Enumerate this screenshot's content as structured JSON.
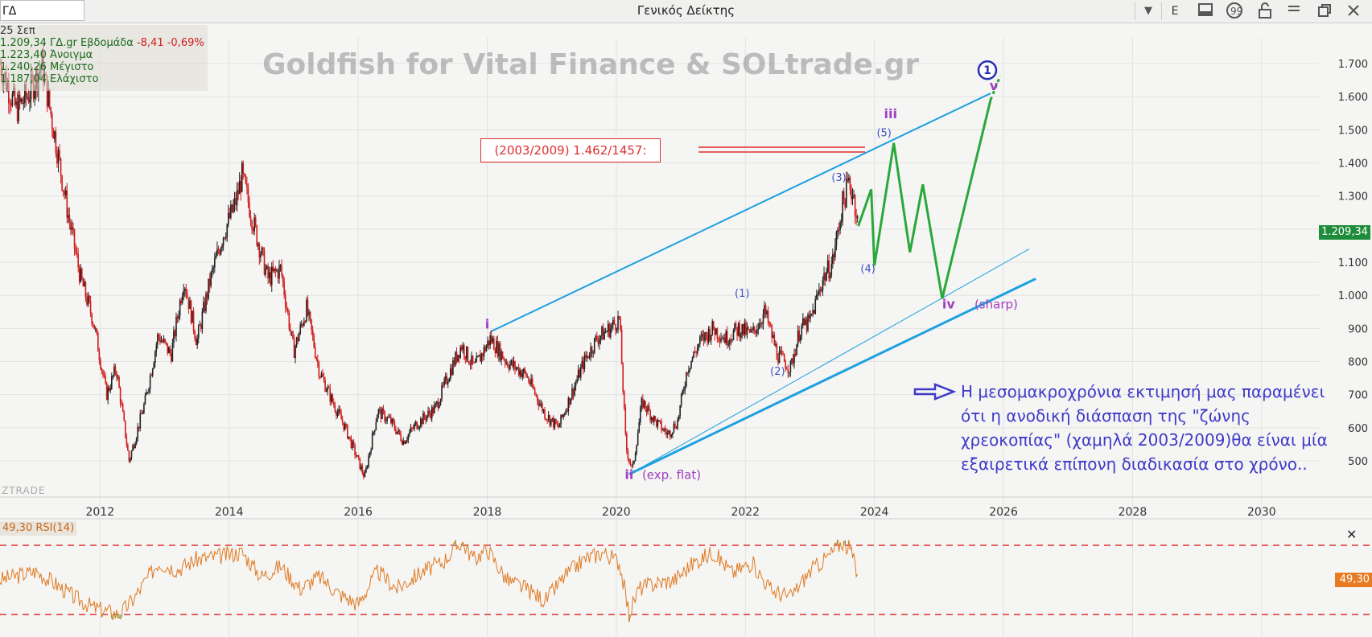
{
  "toolbar": {
    "symbol": "ΓΔ",
    "title": "Γενικός Δείκτης",
    "e_label": "E"
  },
  "info": {
    "date": "25 Σεπ",
    "close": "1.209,34 ΓΔ.gr Εβδομάδα",
    "change": "-8,41 -0,69%",
    "open": "1.223,40 Άνοιγμα",
    "high": "1.240,26 Μέγιστο",
    "low": "1.187,04 Ελάχιστο"
  },
  "watermark": "Goldfish for Vital Finance & SOLtrade.gr",
  "brand": "ZTRADE",
  "history_box": "(2003/2009) 1.462/1457:",
  "comment": "Η μεσομακροχρόνια εκτιμησή μας παραμένει ότι η ανοδική διάσπαση της \"ζώνης χρεοκοπίας\" (χαμηλά 2003/2009)θα είναι μία εξαιρετικά επίπονη διαδικασία στο χρόνο..",
  "last_price": "1.209,34",
  "rsi": {
    "label": "49,30 RSI(14)",
    "value_tag": "49,30",
    "mid_tick": "50",
    "overbought": 70,
    "oversold": 30
  },
  "colors": {
    "up": "#222222",
    "down": "#d01c1c",
    "channel": "#1ea0e0",
    "projection": "#2aa83a",
    "rsi_line": "#e07a22",
    "rsi_fill": "#8fce8f",
    "limit": "#e03030",
    "wave_label": "#a040c0",
    "sub_wave": "#4050c0"
  },
  "chart_data": {
    "type": "candlestick",
    "y_axis": {
      "ticks": [
        500,
        600,
        700,
        800,
        900,
        1000,
        1100,
        1200,
        1300,
        1400,
        1500,
        1600,
        1700
      ],
      "tick_labels": [
        "500",
        "600",
        "700",
        "800",
        "900",
        "1.000",
        "1.100",
        "1.200",
        "1.300",
        "1.400",
        "1.500",
        "1.600",
        "1.700"
      ],
      "range": [
        420,
        1750
      ]
    },
    "x_axis": {
      "ticks": [
        2012,
        2014,
        2016,
        2018,
        2020,
        2022,
        2024,
        2026,
        2028,
        2030
      ],
      "tick_labels": [
        "2012",
        "2014",
        "2016",
        "2018",
        "2020",
        "2022",
        "2024",
        "2026",
        "2028",
        "2030"
      ],
      "range": [
        2010.45,
        2030.9
      ]
    },
    "price_path": [
      [
        2010.45,
        1700
      ],
      [
        2010.7,
        1560
      ],
      [
        2010.9,
        1610
      ],
      [
        2011.1,
        1700
      ],
      [
        2011.3,
        1480
      ],
      [
        2011.5,
        1250
      ],
      [
        2011.7,
        1050
      ],
      [
        2011.9,
        920
      ],
      [
        2012.1,
        700
      ],
      [
        2012.25,
        780
      ],
      [
        2012.45,
        500
      ],
      [
        2012.7,
        680
      ],
      [
        2012.9,
        880
      ],
      [
        2013.1,
        820
      ],
      [
        2013.3,
        1050
      ],
      [
        2013.5,
        860
      ],
      [
        2013.7,
        1040
      ],
      [
        2013.9,
        1180
      ],
      [
        2014.1,
        1280
      ],
      [
        2014.2,
        1360
      ],
      [
        2014.4,
        1200
      ],
      [
        2014.6,
        1050
      ],
      [
        2014.8,
        1080
      ],
      [
        2015.0,
        830
      ],
      [
        2015.2,
        960
      ],
      [
        2015.4,
        770
      ],
      [
        2015.6,
        680
      ],
      [
        2015.8,
        600
      ],
      [
        2016.1,
        450
      ],
      [
        2016.3,
        650
      ],
      [
        2016.5,
        620
      ],
      [
        2016.7,
        560
      ],
      [
        2016.9,
        610
      ],
      [
        2017.2,
        660
      ],
      [
        2017.4,
        760
      ],
      [
        2017.6,
        850
      ],
      [
        2017.8,
        780
      ],
      [
        2018.05,
        870
      ],
      [
        2018.3,
        800
      ],
      [
        2018.6,
        760
      ],
      [
        2018.9,
        640
      ],
      [
        2019.1,
        600
      ],
      [
        2019.3,
        700
      ],
      [
        2019.5,
        800
      ],
      [
        2019.7,
        870
      ],
      [
        2019.9,
        900
      ],
      [
        2020.05,
        930
      ],
      [
        2020.15,
        540
      ],
      [
        2020.25,
        470
      ],
      [
        2020.4,
        680
      ],
      [
        2020.6,
        620
      ],
      [
        2020.8,
        580
      ],
      [
        2020.95,
        620
      ],
      [
        2021.1,
        780
      ],
      [
        2021.3,
        860
      ],
      [
        2021.5,
        900
      ],
      [
        2021.7,
        870
      ],
      [
        2021.9,
        900
      ],
      [
        2022.1,
        880
      ],
      [
        2022.3,
        950
      ],
      [
        2022.5,
        820
      ],
      [
        2022.7,
        780
      ],
      [
        2022.85,
        900
      ],
      [
        2023.0,
        920
      ],
      [
        2023.2,
        1050
      ],
      [
        2023.35,
        1100
      ],
      [
        2023.5,
        1270
      ],
      [
        2023.6,
        1340
      ],
      [
        2023.68,
        1300
      ],
      [
        2023.75,
        1209
      ]
    ],
    "rsi_path": [
      [
        2010.45,
        50
      ],
      [
        2011.0,
        55
      ],
      [
        2011.3,
        48
      ],
      [
        2011.6,
        40
      ],
      [
        2011.9,
        34
      ],
      [
        2012.3,
        30
      ],
      [
        2012.5,
        38
      ],
      [
        2012.9,
        60
      ],
      [
        2013.2,
        56
      ],
      [
        2013.5,
        62
      ],
      [
        2013.9,
        64
      ],
      [
        2014.2,
        66
      ],
      [
        2014.5,
        52
      ],
      [
        2014.8,
        58
      ],
      [
        2015.1,
        45
      ],
      [
        2015.4,
        52
      ],
      [
        2015.7,
        42
      ],
      [
        2016.0,
        36
      ],
      [
        2016.3,
        55
      ],
      [
        2016.6,
        45
      ],
      [
        2017.0,
        55
      ],
      [
        2017.3,
        60
      ],
      [
        2017.6,
        72
      ],
      [
        2017.8,
        62
      ],
      [
        2018.0,
        68
      ],
      [
        2018.3,
        50
      ],
      [
        2018.6,
        45
      ],
      [
        2018.9,
        38
      ],
      [
        2019.2,
        52
      ],
      [
        2019.5,
        62
      ],
      [
        2019.8,
        66
      ],
      [
        2020.05,
        60
      ],
      [
        2020.2,
        30
      ],
      [
        2020.35,
        45
      ],
      [
        2020.6,
        48
      ],
      [
        2020.9,
        50
      ],
      [
        2021.2,
        60
      ],
      [
        2021.5,
        66
      ],
      [
        2021.8,
        54
      ],
      [
        2022.1,
        60
      ],
      [
        2022.4,
        44
      ],
      [
        2022.7,
        40
      ],
      [
        2023.0,
        55
      ],
      [
        2023.3,
        64
      ],
      [
        2023.5,
        72
      ],
      [
        2023.65,
        66
      ],
      [
        2023.75,
        49.3
      ]
    ],
    "channel_upper": [
      [
        2018.05,
        890
      ],
      [
        2025.8,
        1610
      ]
    ],
    "channel_lower": [
      [
        2020.2,
        460
      ],
      [
        2026.5,
        1050
      ]
    ],
    "channel_lower_thin": [
      [
        2020.3,
        470
      ],
      [
        2026.4,
        1140
      ]
    ],
    "projection": [
      [
        2023.75,
        1209
      ],
      [
        2023.95,
        1320
      ],
      [
        2024.0,
        1090
      ],
      [
        2024.3,
        1460
      ],
      [
        2024.55,
        1130
      ],
      [
        2024.75,
        1335
      ],
      [
        2025.05,
        990
      ],
      [
        2025.8,
        1590
      ]
    ],
    "history_lines": [
      1462,
      1457
    ],
    "wave_labels": [
      {
        "text": "i",
        "x": 2018.0,
        "y": 900,
        "kind": "major"
      },
      {
        "text": "ii",
        "x": 2020.2,
        "y": 445,
        "kind": "major"
      },
      {
        "text": "(exp. flat)",
        "x": 2020.4,
        "y": 445,
        "kind": "note"
      },
      {
        "text": "iii",
        "x": 2024.25,
        "y": 1535,
        "kind": "major"
      },
      {
        "text": "iv",
        "x": 2025.15,
        "y": 960,
        "kind": "major"
      },
      {
        "text": "(sharp)",
        "x": 2025.55,
        "y": 960,
        "kind": "note"
      },
      {
        "text": "v",
        "x": 2025.85,
        "y": 1620,
        "kind": "major"
      },
      {
        "text": "(1)",
        "x": 2021.95,
        "y": 995,
        "kind": "minor"
      },
      {
        "text": "(2)",
        "x": 2022.5,
        "y": 760,
        "kind": "minor"
      },
      {
        "text": "(3)",
        "x": 2023.45,
        "y": 1345,
        "kind": "minor"
      },
      {
        "text": "(4)",
        "x": 2023.9,
        "y": 1070,
        "kind": "minor"
      },
      {
        "text": "(5)",
        "x": 2024.15,
        "y": 1480,
        "kind": "minor"
      },
      {
        "text": "1",
        "x": 2025.75,
        "y": 1680,
        "kind": "circle"
      }
    ]
  }
}
